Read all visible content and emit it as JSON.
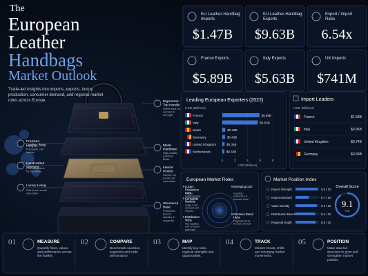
{
  "header": {
    "title_lines": [
      "The",
      "European",
      "Leather",
      "Handbags",
      "Market Outlook"
    ],
    "subtitle": "Trade-led insights into imports, exports, luxury production, consumer demand, and regional market roles across Europe."
  },
  "kpis": [
    {
      "label": "EU Leather-Handbag Imports",
      "value": "$1.47B"
    },
    {
      "label": "EU Leather-Handbag Exports",
      "value": "$9.63B"
    },
    {
      "label": "Export / Import Ratio",
      "value": "6.54x"
    },
    {
      "label": "France Exports",
      "value": "$5.89B"
    },
    {
      "label": "Italy Exports",
      "value": "$5.63B"
    },
    {
      "label": "UK Imports",
      "value": "$741M"
    }
  ],
  "features": [
    {
      "title": "Ergonomic Top Handle",
      "text": "Reinforced for comfort & strength"
    },
    {
      "title": "Premium Leather Body",
      "text": "Full-grain European calf leather"
    },
    {
      "title": "Metal Hardware",
      "text": "High-quality polished finish"
    },
    {
      "title": "Handcrafted Stitching",
      "text": "Precision sewn for durability"
    },
    {
      "title": "Interior Pocket",
      "text": "Secure zip pocket for essentials"
    },
    {
      "title": "Luxury Lining",
      "text": "Soft-touch suede microfiber"
    },
    {
      "title": "Structured Base",
      "text": "Protective feet for stability & longevity"
    }
  ],
  "chart_data": {
    "type": "bar",
    "title": "Leading European Exporters (2022)",
    "subtitle": "USD (Billions)",
    "x_label": "USD (Billions)",
    "categories": [
      "France",
      "Italy",
      "Spain",
      "Germany",
      "United Kingdom",
      "Netherlands"
    ],
    "values": [
      5.89,
      5.63,
      0.46,
      0.43,
      0.35,
      0.32
    ],
    "value_labels": [
      "$5.89B",
      "$5.63B",
      "$0.46B",
      "$0.43B",
      "$0.35B",
      "$0.32B"
    ],
    "color": "#3b73d0",
    "xlim": [
      0,
      8
    ],
    "xticks": [
      0,
      2,
      4,
      6,
      8
    ]
  },
  "import_leaders": {
    "title": "Import Leaders",
    "unit": "USD (Billions)",
    "rows": [
      {
        "country": "France",
        "value": "$1.58B"
      },
      {
        "country": "Italy",
        "value": "$0.96B"
      },
      {
        "country": "United Kingdom",
        "value": "$0.74B"
      },
      {
        "country": "Germany",
        "value": "$0.58B"
      }
    ]
  },
  "market_roles": {
    "title": "European Market Roles",
    "roles": [
      {
        "name": "Luxury Production Core",
        "text": "Design, craftsmanship and exports"
      },
      {
        "name": "Consumer Markets",
        "text": "Large-scale demand and imports"
      },
      {
        "name": "Distribution Hubs",
        "text": "Key logistics and re-export gateways"
      },
      {
        "name": "Emerging CEE",
        "text": "Growing production & demand hubs"
      },
      {
        "name": "Premium Retail Hubs",
        "text": "Flagship stores & luxury tourism"
      }
    ]
  },
  "position_index": {
    "title": "Market Position Index",
    "xlim": [
      0,
      10
    ],
    "color": "#3b73d0",
    "metrics": [
      {
        "name": "Export Strength",
        "score": 9.5,
        "label": "9.5 / 10"
      },
      {
        "name": "Import Demand",
        "score": 5.7,
        "label": "5.7 / 10"
      },
      {
        "name": "Value Density",
        "score": 9.1,
        "label": "9.1 / 10"
      },
      {
        "name": "Distribution Reach",
        "score": 8.4,
        "label": "8.4 / 10"
      },
      {
        "name": "Regional Depth",
        "score": 8.6,
        "label": "8.6 / 10"
      }
    ],
    "overall_title": "Overall Score",
    "overall": 9.1,
    "overall_scale": "/10"
  },
  "steps": [
    {
      "number": "01",
      "title": "MEASURE",
      "text": "Quantify flows, values and performance across the market."
    },
    {
      "number": "02",
      "title": "COMPARE",
      "text": "Benchmark countries, segments and trade performance."
    },
    {
      "number": "03",
      "title": "MAP",
      "text": "Identify key roles, regional strengths and opportunities."
    },
    {
      "number": "04",
      "title": "TRACK",
      "text": "Monitor trends, shifts and emerging market movements."
    },
    {
      "number": "05",
      "title": "POSITION",
      "text": "Make data-led decisions to grow and strengthen market position."
    }
  ]
}
